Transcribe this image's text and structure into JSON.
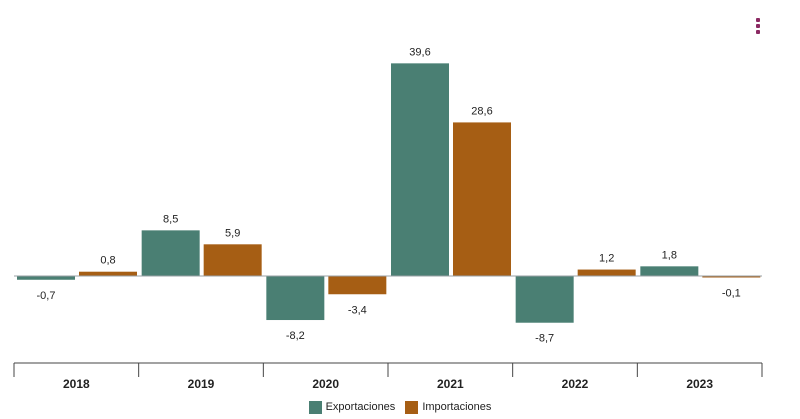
{
  "chart_data": {
    "type": "bar",
    "categories": [
      "2018",
      "2019",
      "2020",
      "2021",
      "2022",
      "2023"
    ],
    "series": [
      {
        "name": "Exportaciones",
        "color": "#4a7f73",
        "values": [
          -0.7,
          8.5,
          -8.2,
          39.6,
          -8.7,
          1.8
        ],
        "labels": [
          "-0,7",
          "8,5",
          "-8,2",
          "39,6",
          "-8,7",
          "1,8"
        ]
      },
      {
        "name": "Importaciones",
        "color": "#a65e14",
        "values": [
          0.8,
          5.9,
          -3.4,
          28.6,
          1.2,
          -0.1
        ],
        "labels": [
          "0,8",
          "5,9",
          "-3,4",
          "28,6",
          "1,2",
          "-0,1"
        ]
      }
    ],
    "ylim": [
      -14.7,
      42
    ],
    "legend": "bottom-center",
    "grid": false
  },
  "ui": {
    "menu_icon": "vertical-dots-icon",
    "menu_color": "#8b2a63"
  }
}
